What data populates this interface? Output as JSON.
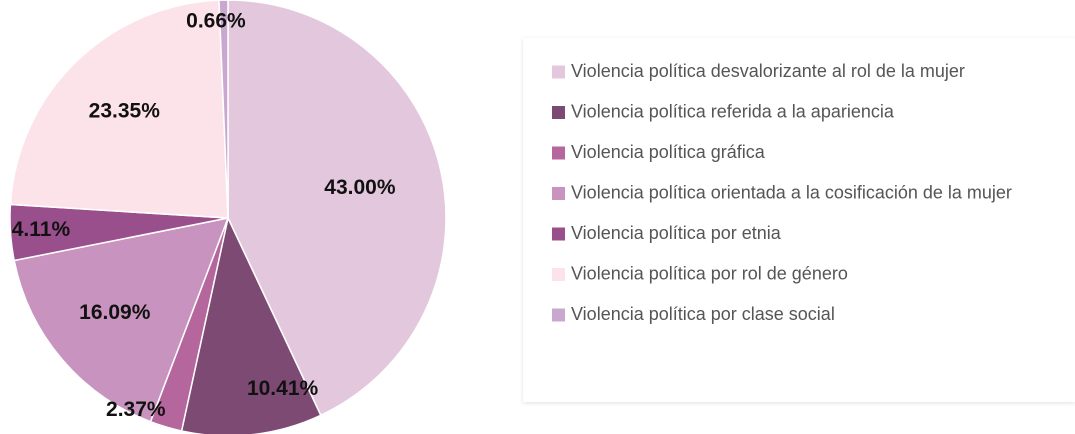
{
  "chart_data": {
    "type": "pie",
    "title": "",
    "categories": [
      "Violencia política desvalorizante al rol de la mujer",
      "Violencia política referida a la apariencia",
      "Violencia política gráfica",
      "Violencia política orientada a la cosificación de la mujer",
      "Violencia política por etnia",
      "Violencia política por rol de género",
      "Violencia política por clase social"
    ],
    "values": [
      43.0,
      10.41,
      2.37,
      16.09,
      4.11,
      23.35,
      0.66
    ],
    "value_labels": [
      "43.00%",
      "10.41%",
      "2.37%",
      "16.09%",
      "4.11%",
      "23.35%",
      "0.66%"
    ],
    "colors": [
      "#E3C7DD",
      "#7D4A73",
      "#B5669D",
      "#C894BF",
      "#9A4F8D",
      "#FCE3EA",
      "#C9A8CF"
    ],
    "legend": "right",
    "start_angle_deg": 0,
    "direction": "clockwise"
  }
}
